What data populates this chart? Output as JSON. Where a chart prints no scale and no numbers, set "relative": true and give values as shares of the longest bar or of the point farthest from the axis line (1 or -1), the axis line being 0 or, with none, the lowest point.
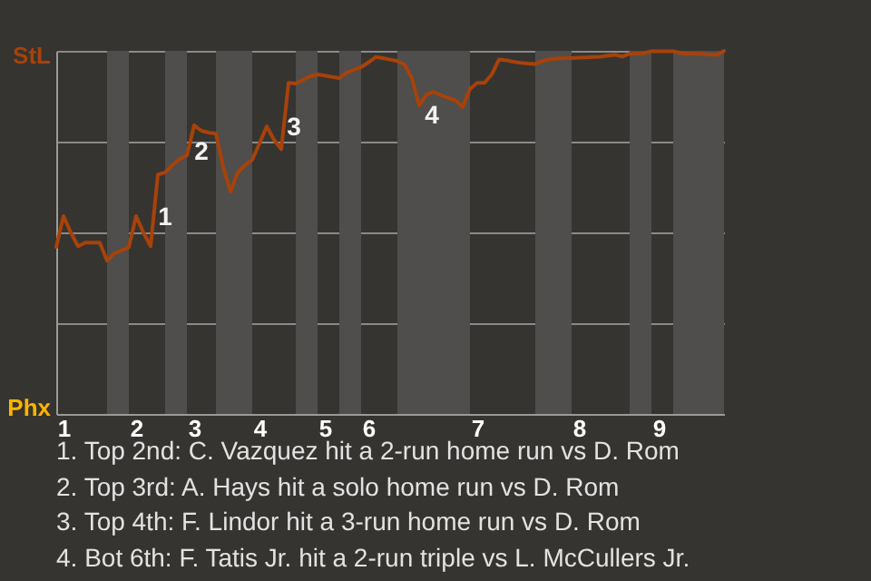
{
  "chart_data": {
    "type": "line",
    "relative": true,
    "categories": [
      null,
      "1",
      null,
      null,
      null,
      null,
      null,
      null,
      null,
      null,
      null,
      "2",
      null,
      null,
      null,
      null,
      null,
      null,
      null,
      "3",
      null,
      null,
      null,
      null,
      null,
      null,
      null,
      null,
      "4",
      null,
      null,
      null,
      null,
      null,
      null,
      null,
      null,
      "5",
      null,
      null,
      null,
      null,
      null,
      "6",
      null,
      null,
      null,
      null,
      null,
      null,
      null,
      null,
      null,
      null,
      null,
      null,
      null,
      null,
      "7",
      null,
      null,
      null,
      null,
      null,
      null,
      null,
      null,
      null,
      null,
      null,
      null,
      null,
      "8",
      null,
      null,
      null,
      null,
      null,
      null,
      null,
      null,
      null,
      null,
      "9",
      null,
      null,
      null,
      null,
      null,
      null,
      null,
      null,
      null
    ],
    "series": [
      {
        "color": "#a8420a",
        "values": [
          0.46,
          0.545,
          0.5,
          0.462,
          0.472,
          0.472,
          0.472,
          0.422,
          0.442,
          0.45,
          0.459,
          0.545,
          0.5,
          0.462,
          0.659,
          0.665,
          0.685,
          0.702,
          0.712,
          0.795,
          0.78,
          0.775,
          0.772,
          0.68,
          0.612,
          0.665,
          0.685,
          0.7,
          0.745,
          0.792,
          0.755,
          0.729,
          0.912,
          0.91,
          0.92,
          0.93,
          0.935,
          0.932,
          0.928,
          0.925,
          0.94,
          0.948,
          0.955,
          0.968,
          0.983,
          0.98,
          0.976,
          0.972,
          0.962,
          0.925,
          0.85,
          0.879,
          0.887,
          0.878,
          0.87,
          0.864,
          0.845,
          0.895,
          0.912,
          0.912,
          0.935,
          0.976,
          0.974,
          0.97,
          0.967,
          0.965,
          0.964,
          0.972,
          0.977,
          0.979,
          0.98,
          0.98,
          0.981,
          0.982,
          0.983,
          0.984,
          0.987,
          0.989,
          0.984,
          0.992,
          0.992,
          0.994,
          0.999,
          0.999,
          0.999,
          0.999,
          0.994,
          0.992,
          0.992,
          0.991,
          0.99,
          0.989,
          1
        ]
      }
    ],
    "grid": "y",
    "annotations": [
      "StL",
      "Phx",
      "1",
      "2",
      "3",
      "4",
      "1. Top 2nd: C. Vazquez hit a 2-run home run vs D. Rom",
      "2. Top 3rd: A. Hays hit a solo home run vs D. Rom",
      "3. Top 4th: F. Lindor hit a 3-run home run vs D. Rom",
      "4. Bot 6th: F. Tatis Jr. hit a 2-run triple vs L. McCullers Jr."
    ]
  }
}
